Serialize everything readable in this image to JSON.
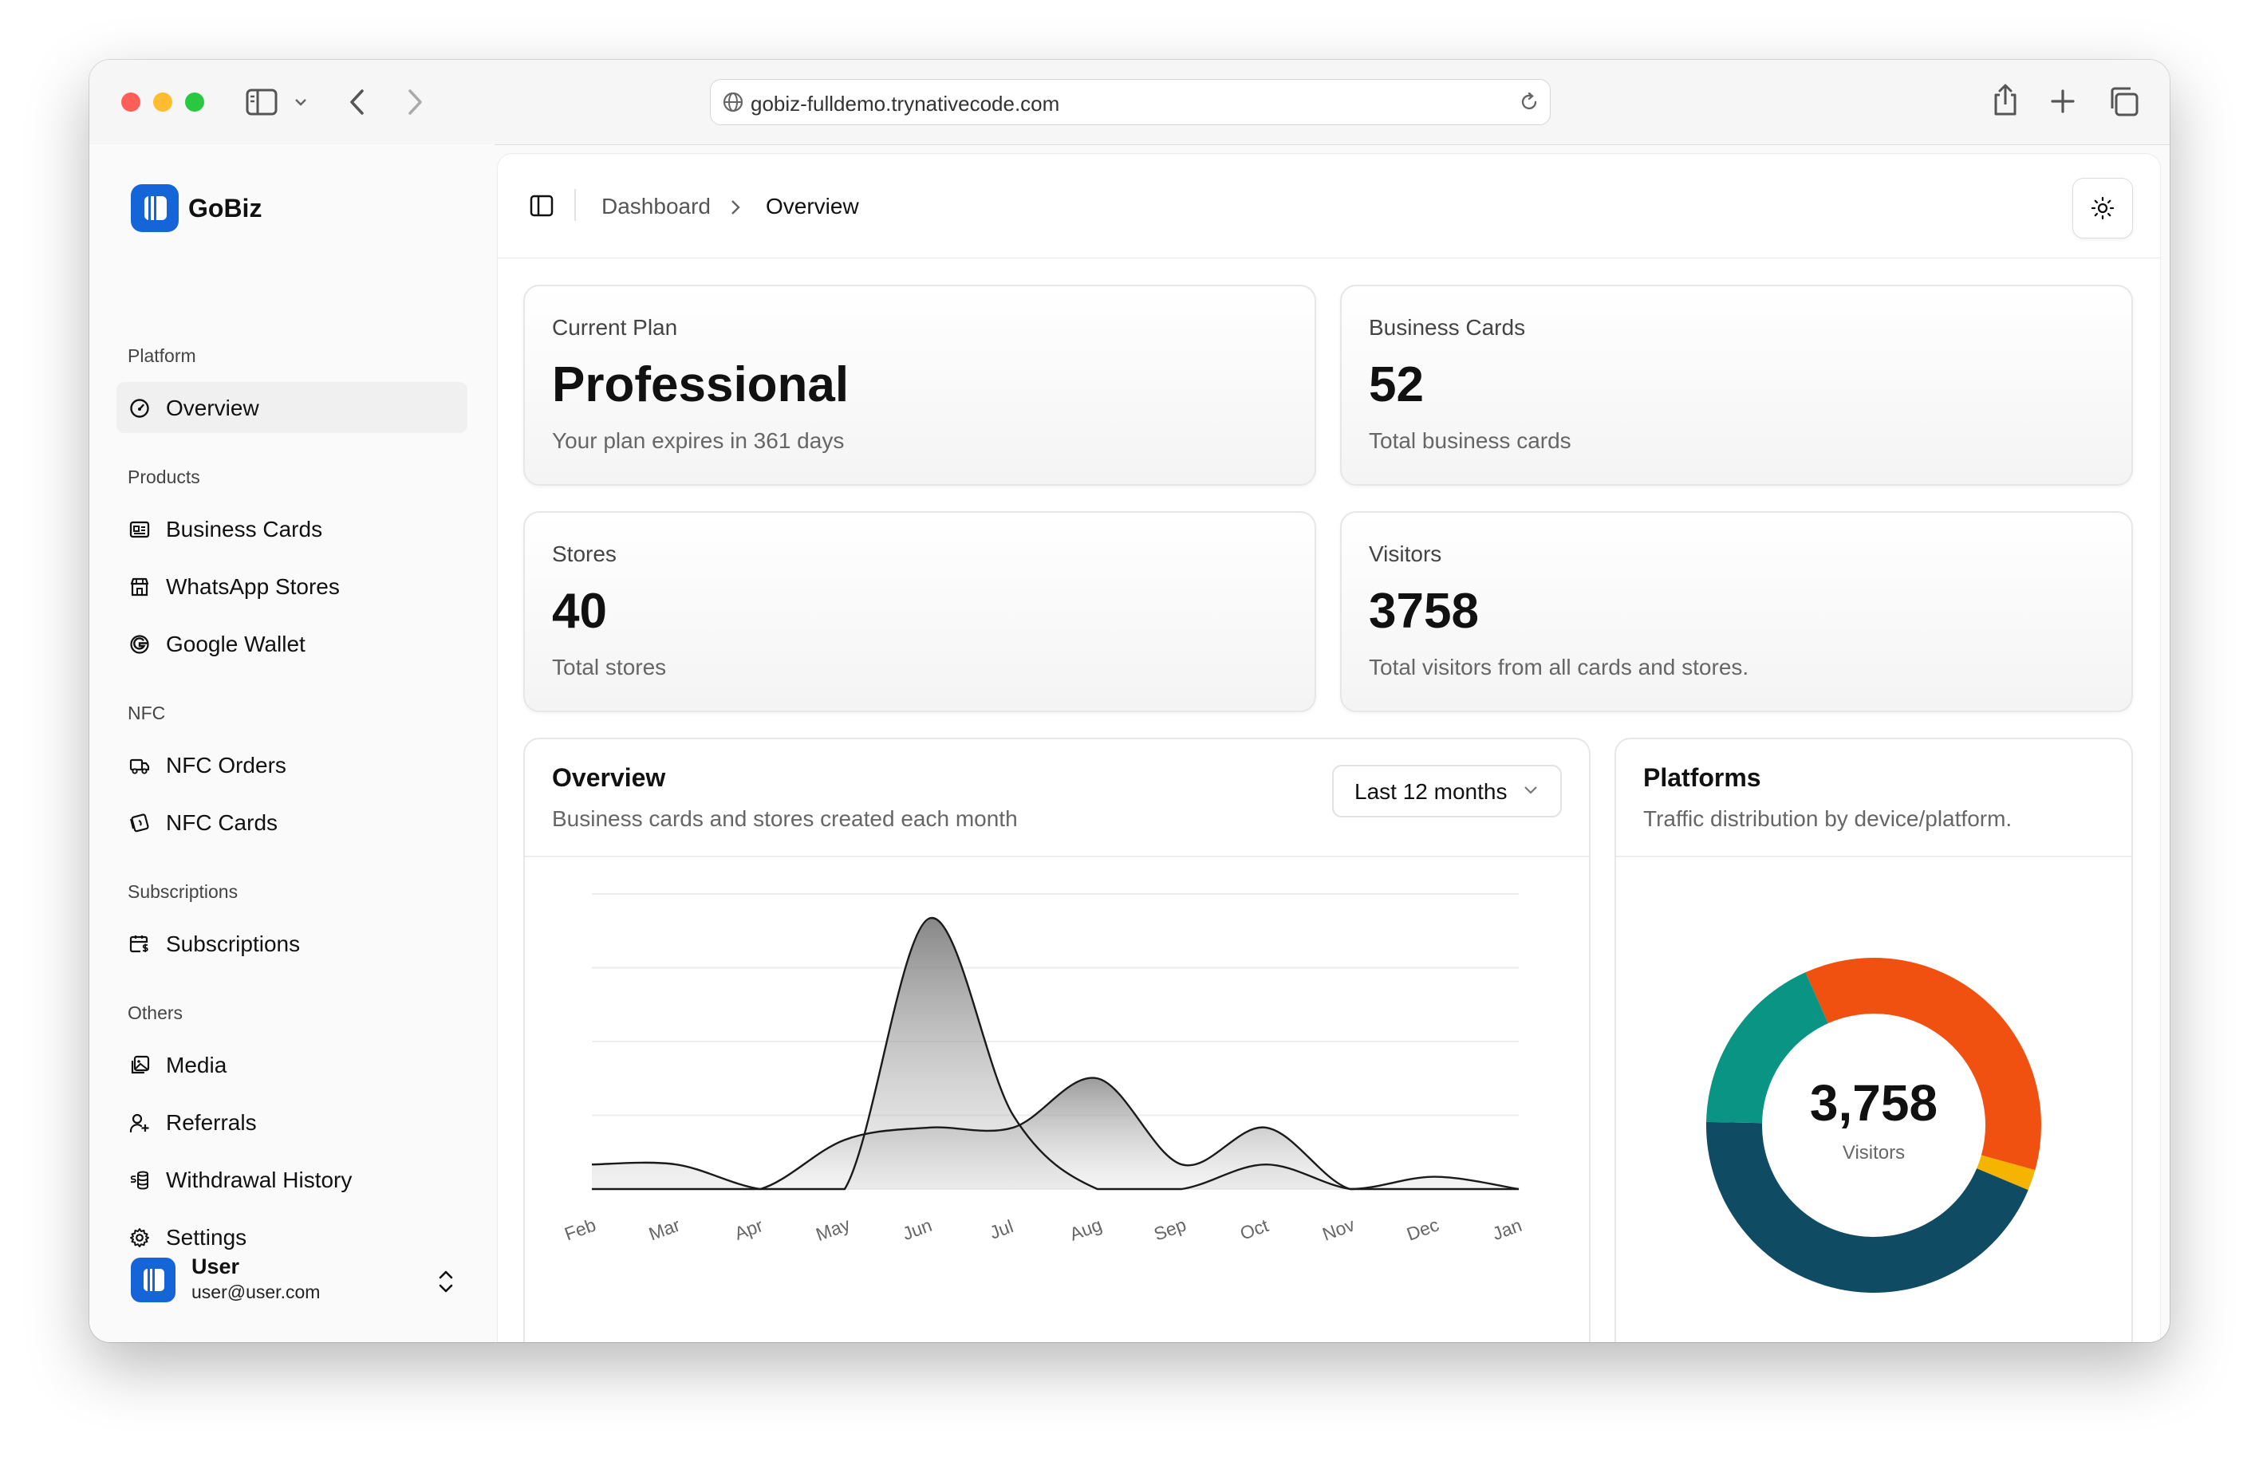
{
  "browser": {
    "url": "gobiz-fulldemo.trynativecode.com"
  },
  "app": {
    "name": "GoBiz"
  },
  "sidebar": {
    "sections": [
      {
        "label": "Platform",
        "items": [
          {
            "label": "Overview",
            "icon": "gauge-icon",
            "active": true
          }
        ]
      },
      {
        "label": "Products",
        "items": [
          {
            "label": "Business Cards",
            "icon": "id-card-icon"
          },
          {
            "label": "WhatsApp Stores",
            "icon": "store-icon"
          },
          {
            "label": "Google Wallet",
            "icon": "google-icon"
          }
        ]
      },
      {
        "label": "NFC",
        "items": [
          {
            "label": "NFC Orders",
            "icon": "truck-icon"
          },
          {
            "label": "NFC Cards",
            "icon": "nfc-card-icon"
          }
        ]
      },
      {
        "label": "Subscriptions",
        "items": [
          {
            "label": "Subscriptions",
            "icon": "calendar-dollar-icon"
          }
        ]
      },
      {
        "label": "Others",
        "items": [
          {
            "label": "Media",
            "icon": "images-icon"
          },
          {
            "label": "Referrals",
            "icon": "user-plus-icon"
          },
          {
            "label": "Withdrawal History",
            "icon": "coins-icon"
          },
          {
            "label": "Settings",
            "icon": "gear-icon"
          }
        ]
      }
    ],
    "user": {
      "name": "User",
      "email": "user@user.com"
    }
  },
  "header": {
    "breadcrumb": [
      "Dashboard",
      "Overview"
    ]
  },
  "stats": [
    {
      "label": "Current Plan",
      "value": "Professional",
      "sub": "Your plan expires in 361 days"
    },
    {
      "label": "Business Cards",
      "value": "52",
      "sub": "Total business cards"
    },
    {
      "label": "Stores",
      "value": "40",
      "sub": "Total stores"
    },
    {
      "label": "Visitors",
      "value": "3758",
      "sub": "Total visitors from all cards and stores."
    }
  ],
  "overview_panel": {
    "title": "Overview",
    "subtitle": "Business cards and stores created each month",
    "range_select": "Last 12 months"
  },
  "platforms_panel": {
    "title": "Platforms",
    "subtitle": "Traffic distribution by device/platform.",
    "center_value": "3,758",
    "center_label": "Visitors"
  },
  "chart_data": [
    {
      "type": "area",
      "categories": [
        "Feb",
        "Mar",
        "Apr",
        "May",
        "Jun",
        "Jul",
        "Aug",
        "Sep",
        "Oct",
        "Nov",
        "Dec",
        "Jan"
      ],
      "ylim": [
        0,
        12
      ],
      "grid": true,
      "series": [
        {
          "values": [
            1,
            1,
            0,
            0,
            11,
            3,
            0,
            0,
            1,
            0,
            0,
            0
          ]
        },
        {
          "values": [
            0,
            0,
            0,
            2,
            2.5,
            2.5,
            4.5,
            1,
            2.5,
            0,
            0.5,
            0
          ]
        }
      ]
    },
    {
      "type": "pie",
      "donut": true,
      "slices": [
        {
          "value": 36,
          "color": "#f05010"
        },
        {
          "value": 2,
          "color": "#f5b400"
        },
        {
          "value": 44,
          "color": "#0f4c63"
        },
        {
          "value": 18,
          "color": "#0a9484"
        }
      ]
    }
  ]
}
